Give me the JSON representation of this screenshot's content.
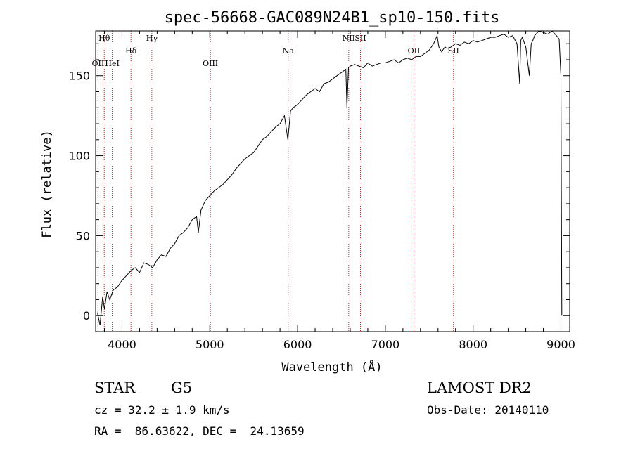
{
  "chart_data": {
    "type": "line",
    "title": "spec-56668-GAC089N24B1_sp10-150.fits",
    "xlabel": "Wavelength (Å)",
    "ylabel": "Flux (relative)",
    "xlim": [
      3700,
      9100
    ],
    "ylim": [
      -10,
      178
    ],
    "xticks": [
      4000,
      5000,
      6000,
      7000,
      8000,
      9000
    ],
    "xtick_labels": [
      "4000",
      "5000",
      "6000",
      "7000",
      "8000",
      "9000"
    ],
    "yticks": [
      0,
      50,
      100,
      150
    ],
    "ytick_labels": [
      "0",
      "50",
      "100",
      "150"
    ],
    "x_minor_step": 200,
    "y_minor_step": 10,
    "line_color": "#000000",
    "marker_color": "#cc2222",
    "series": [
      {
        "name": "flux",
        "x": [
          3720,
          3750,
          3780,
          3800,
          3830,
          3860,
          3900,
          3950,
          4000,
          4050,
          4100,
          4150,
          4200,
          4250,
          4300,
          4350,
          4400,
          4450,
          4500,
          4550,
          4600,
          4650,
          4700,
          4750,
          4800,
          4850,
          4870,
          4900,
          4950,
          5000,
          5050,
          5100,
          5150,
          5200,
          5250,
          5300,
          5350,
          5400,
          5450,
          5500,
          5550,
          5600,
          5650,
          5700,
          5750,
          5800,
          5850,
          5890,
          5920,
          5950,
          6000,
          6050,
          6100,
          6150,
          6200,
          6250,
          6300,
          6350,
          6400,
          6450,
          6500,
          6550,
          6563,
          6580,
          6600,
          6650,
          6700,
          6750,
          6800,
          6850,
          6900,
          6950,
          7000,
          7050,
          7100,
          7150,
          7200,
          7250,
          7300,
          7350,
          7400,
          7450,
          7500,
          7550,
          7590,
          7610,
          7640,
          7680,
          7700,
          7750,
          7800,
          7850,
          7900,
          7950,
          8000,
          8050,
          8100,
          8150,
          8200,
          8250,
          8300,
          8350,
          8400,
          8450,
          8500,
          8530,
          8542,
          8560,
          8600,
          8640,
          8662,
          8680,
          8700,
          8750,
          8800,
          8850,
          8900,
          8950,
          8980,
          9000,
          9010
        ],
        "y": [
          2,
          -6,
          12,
          4,
          15,
          10,
          16,
          18,
          22,
          25,
          28,
          30,
          27,
          33,
          32,
          30,
          35,
          38,
          37,
          42,
          45,
          50,
          52,
          55,
          60,
          62,
          52,
          66,
          72,
          75,
          78,
          80,
          82,
          85,
          88,
          92,
          95,
          98,
          100,
          102,
          106,
          110,
          112,
          115,
          118,
          120,
          125,
          110,
          128,
          130,
          132,
          135,
          138,
          140,
          142,
          140,
          145,
          146,
          148,
          150,
          152,
          154,
          130,
          155,
          156,
          157,
          156,
          155,
          158,
          156,
          157,
          158,
          158,
          159,
          160,
          158,
          160,
          161,
          160,
          162,
          162,
          164,
          166,
          170,
          175,
          168,
          165,
          168,
          167,
          168,
          170,
          169,
          171,
          170,
          172,
          171,
          172,
          173,
          174,
          174,
          175,
          176,
          174,
          175,
          170,
          145,
          172,
          174,
          168,
          150,
          170,
          172,
          175,
          178,
          177,
          176,
          178,
          175,
          173,
          150,
          0
        ]
      }
    ],
    "lines": [
      {
        "label": "Hθ",
        "x": 3798
      },
      {
        "label": "OII",
        "x": 3727
      },
      {
        "label": "HeI",
        "x": 3889
      },
      {
        "label": "Hδ",
        "x": 4102
      },
      {
        "label": "Hγ",
        "x": 4340
      },
      {
        "label": "OIII",
        "x": 5007
      },
      {
        "label": "Na",
        "x": 5893
      },
      {
        "label": "NII",
        "x": 6583
      },
      {
        "label": "SII",
        "x": 6716
      },
      {
        "label": "OII",
        "x": 7325
      },
      {
        "label": "SII",
        "x": 7776
      }
    ]
  },
  "info": {
    "object_class": "STAR",
    "subclass": "G5",
    "redshift": "cz = 32.2 ± 1.9 km/s",
    "coords": "RA =  86.63622, DEC =  24.13659",
    "survey": "LAMOST DR2",
    "obs_date": "Obs-Date: 20140110"
  }
}
